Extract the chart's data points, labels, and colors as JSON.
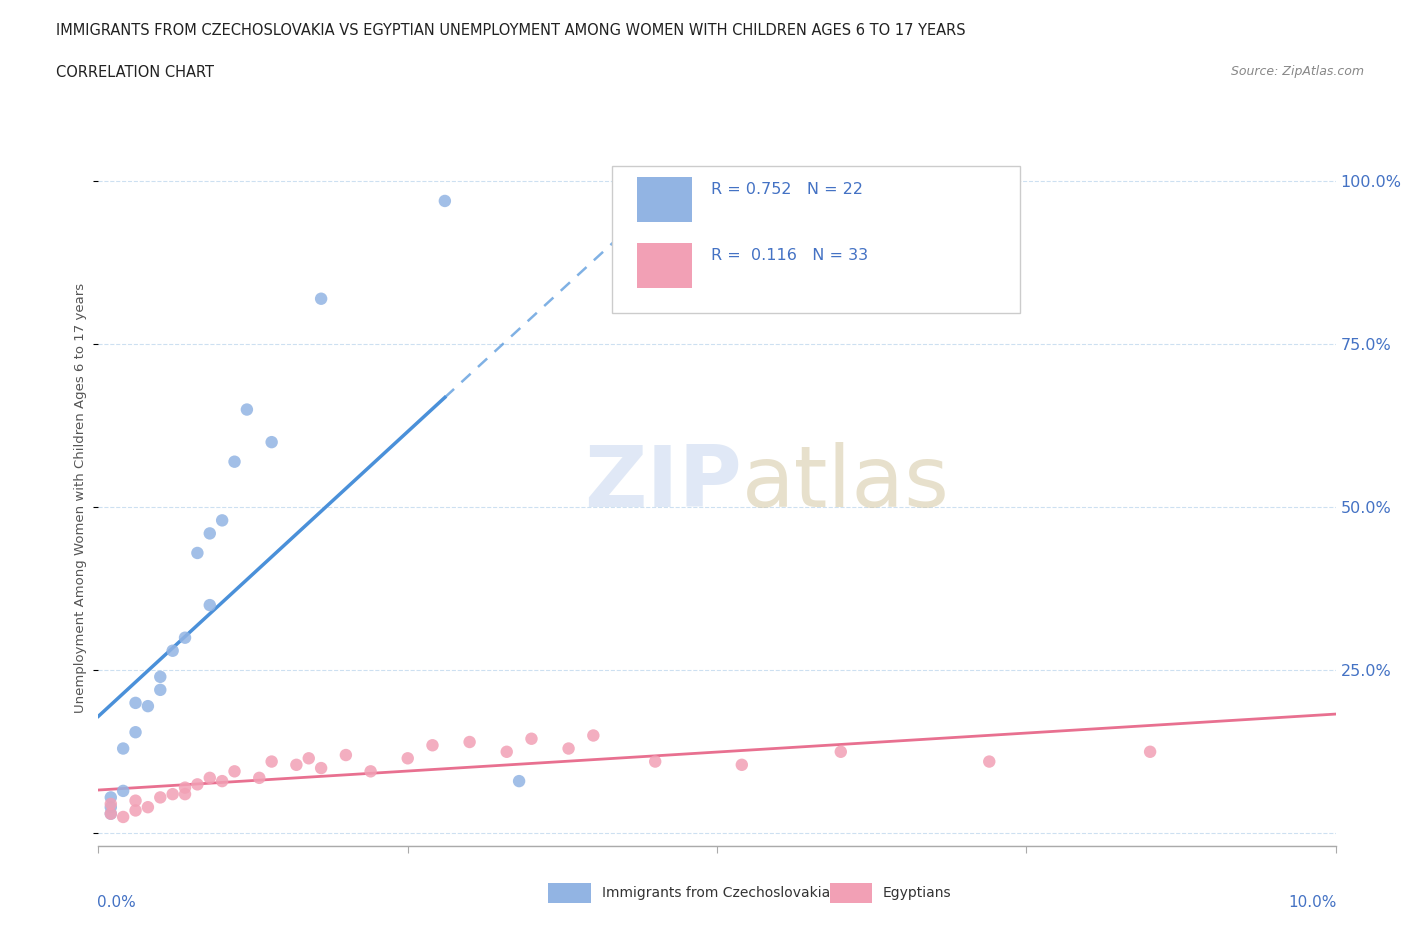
{
  "title": "IMMIGRANTS FROM CZECHOSLOVAKIA VS EGYPTIAN UNEMPLOYMENT AMONG WOMEN WITH CHILDREN AGES 6 TO 17 YEARS",
  "subtitle": "CORRELATION CHART",
  "source": "Source: ZipAtlas.com",
  "ylabel": "Unemployment Among Women with Children Ages 6 to 17 years",
  "color_blue": "#92b4e3",
  "color_pink": "#f2a0b5",
  "color_blue_line": "#4a90d9",
  "color_pink_line": "#e87090",
  "color_blue_text": "#4472c4",
  "watermark_zip_color": "#ccdaf0",
  "watermark_atlas_color": "#d8ccaa",
  "blue_scatter_x": [
    0.001,
    0.001,
    0.001,
    0.002,
    0.002,
    0.003,
    0.003,
    0.004,
    0.005,
    0.005,
    0.006,
    0.007,
    0.008,
    0.009,
    0.009,
    0.01,
    0.011,
    0.012,
    0.014,
    0.018,
    0.028,
    0.034
  ],
  "blue_scatter_y": [
    3.0,
    4.0,
    5.5,
    6.5,
    13.0,
    15.5,
    20.0,
    19.5,
    22.0,
    24.0,
    28.0,
    30.0,
    43.0,
    46.0,
    35.0,
    48.0,
    57.0,
    65.0,
    60.0,
    82.0,
    97.0,
    8.0
  ],
  "pink_scatter_x": [
    0.001,
    0.001,
    0.002,
    0.003,
    0.003,
    0.004,
    0.005,
    0.006,
    0.007,
    0.007,
    0.008,
    0.009,
    0.01,
    0.011,
    0.013,
    0.014,
    0.016,
    0.017,
    0.018,
    0.02,
    0.022,
    0.025,
    0.027,
    0.03,
    0.033,
    0.035,
    0.038,
    0.04,
    0.045,
    0.052,
    0.06,
    0.072,
    0.085
  ],
  "pink_scatter_y": [
    3.0,
    4.5,
    2.5,
    3.5,
    5.0,
    4.0,
    5.5,
    6.0,
    7.0,
    6.0,
    7.5,
    8.5,
    8.0,
    9.5,
    8.5,
    11.0,
    10.5,
    11.5,
    10.0,
    12.0,
    9.5,
    11.5,
    13.5,
    14.0,
    12.5,
    14.5,
    13.0,
    15.0,
    11.0,
    10.5,
    12.5,
    11.0,
    12.5
  ],
  "xlim": [
    0,
    0.1
  ],
  "ylim": [
    -2,
    105
  ],
  "ytick_values": [
    0,
    25,
    50,
    75,
    100
  ],
  "ytick_labels": [
    "",
    "25.0%",
    "50.0%",
    "75.0%",
    "100.0%"
  ],
  "xtick_values": [
    0.0,
    0.025,
    0.05,
    0.075,
    0.1
  ],
  "background_color": "#ffffff",
  "grid_color": "#c8ddf0"
}
